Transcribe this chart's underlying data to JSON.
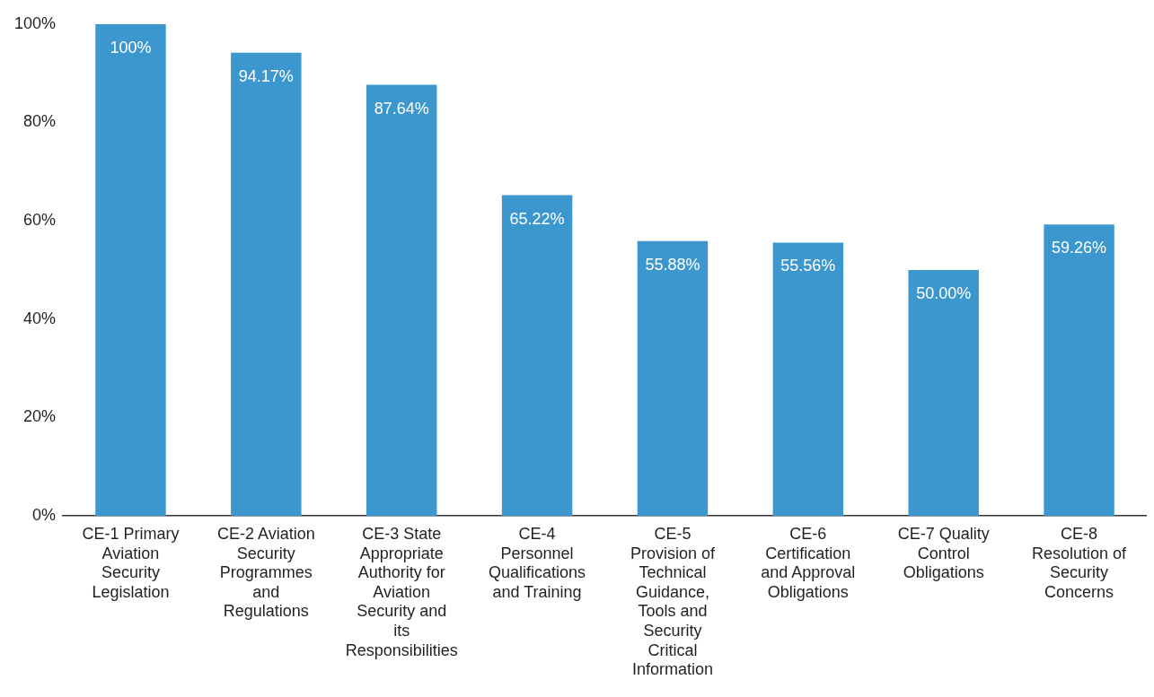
{
  "chart_data": {
    "type": "bar",
    "categories": [
      "CE-1 Primary Aviation Security Legislation",
      "CE-2 Aviation Security Programmes and Regulations",
      "CE-3 State Appropriate Authority for Aviation Security and its Responsibilities",
      "CE-4 Personnel Qualifications and Training",
      "CE-5 Provision of Technical Guidance, Tools and Security Critical Information",
      "CE-6 Certification and Approval Obligations",
      "CE-7 Quality Control Obligations",
      "CE-8 Resolution of Security Concerns"
    ],
    "values": [
      100,
      94.17,
      87.64,
      65.22,
      55.88,
      55.56,
      50.0,
      59.26
    ],
    "value_labels": [
      "100%",
      "94.17%",
      "87.64%",
      "65.22%",
      "55.88%",
      "55.56%",
      "50.00%",
      "59.26%"
    ],
    "color": "#3d97cf",
    "ylim": [
      0,
      100
    ],
    "yticks": [
      {
        "value": 0,
        "label": "0%"
      },
      {
        "value": 20,
        "label": "20%"
      },
      {
        "value": 40,
        "label": "40%"
      },
      {
        "value": 60,
        "label": "60%"
      },
      {
        "value": 80,
        "label": "80%"
      },
      {
        "value": 100,
        "label": "100%"
      }
    ],
    "grid": false,
    "legend": false
  }
}
